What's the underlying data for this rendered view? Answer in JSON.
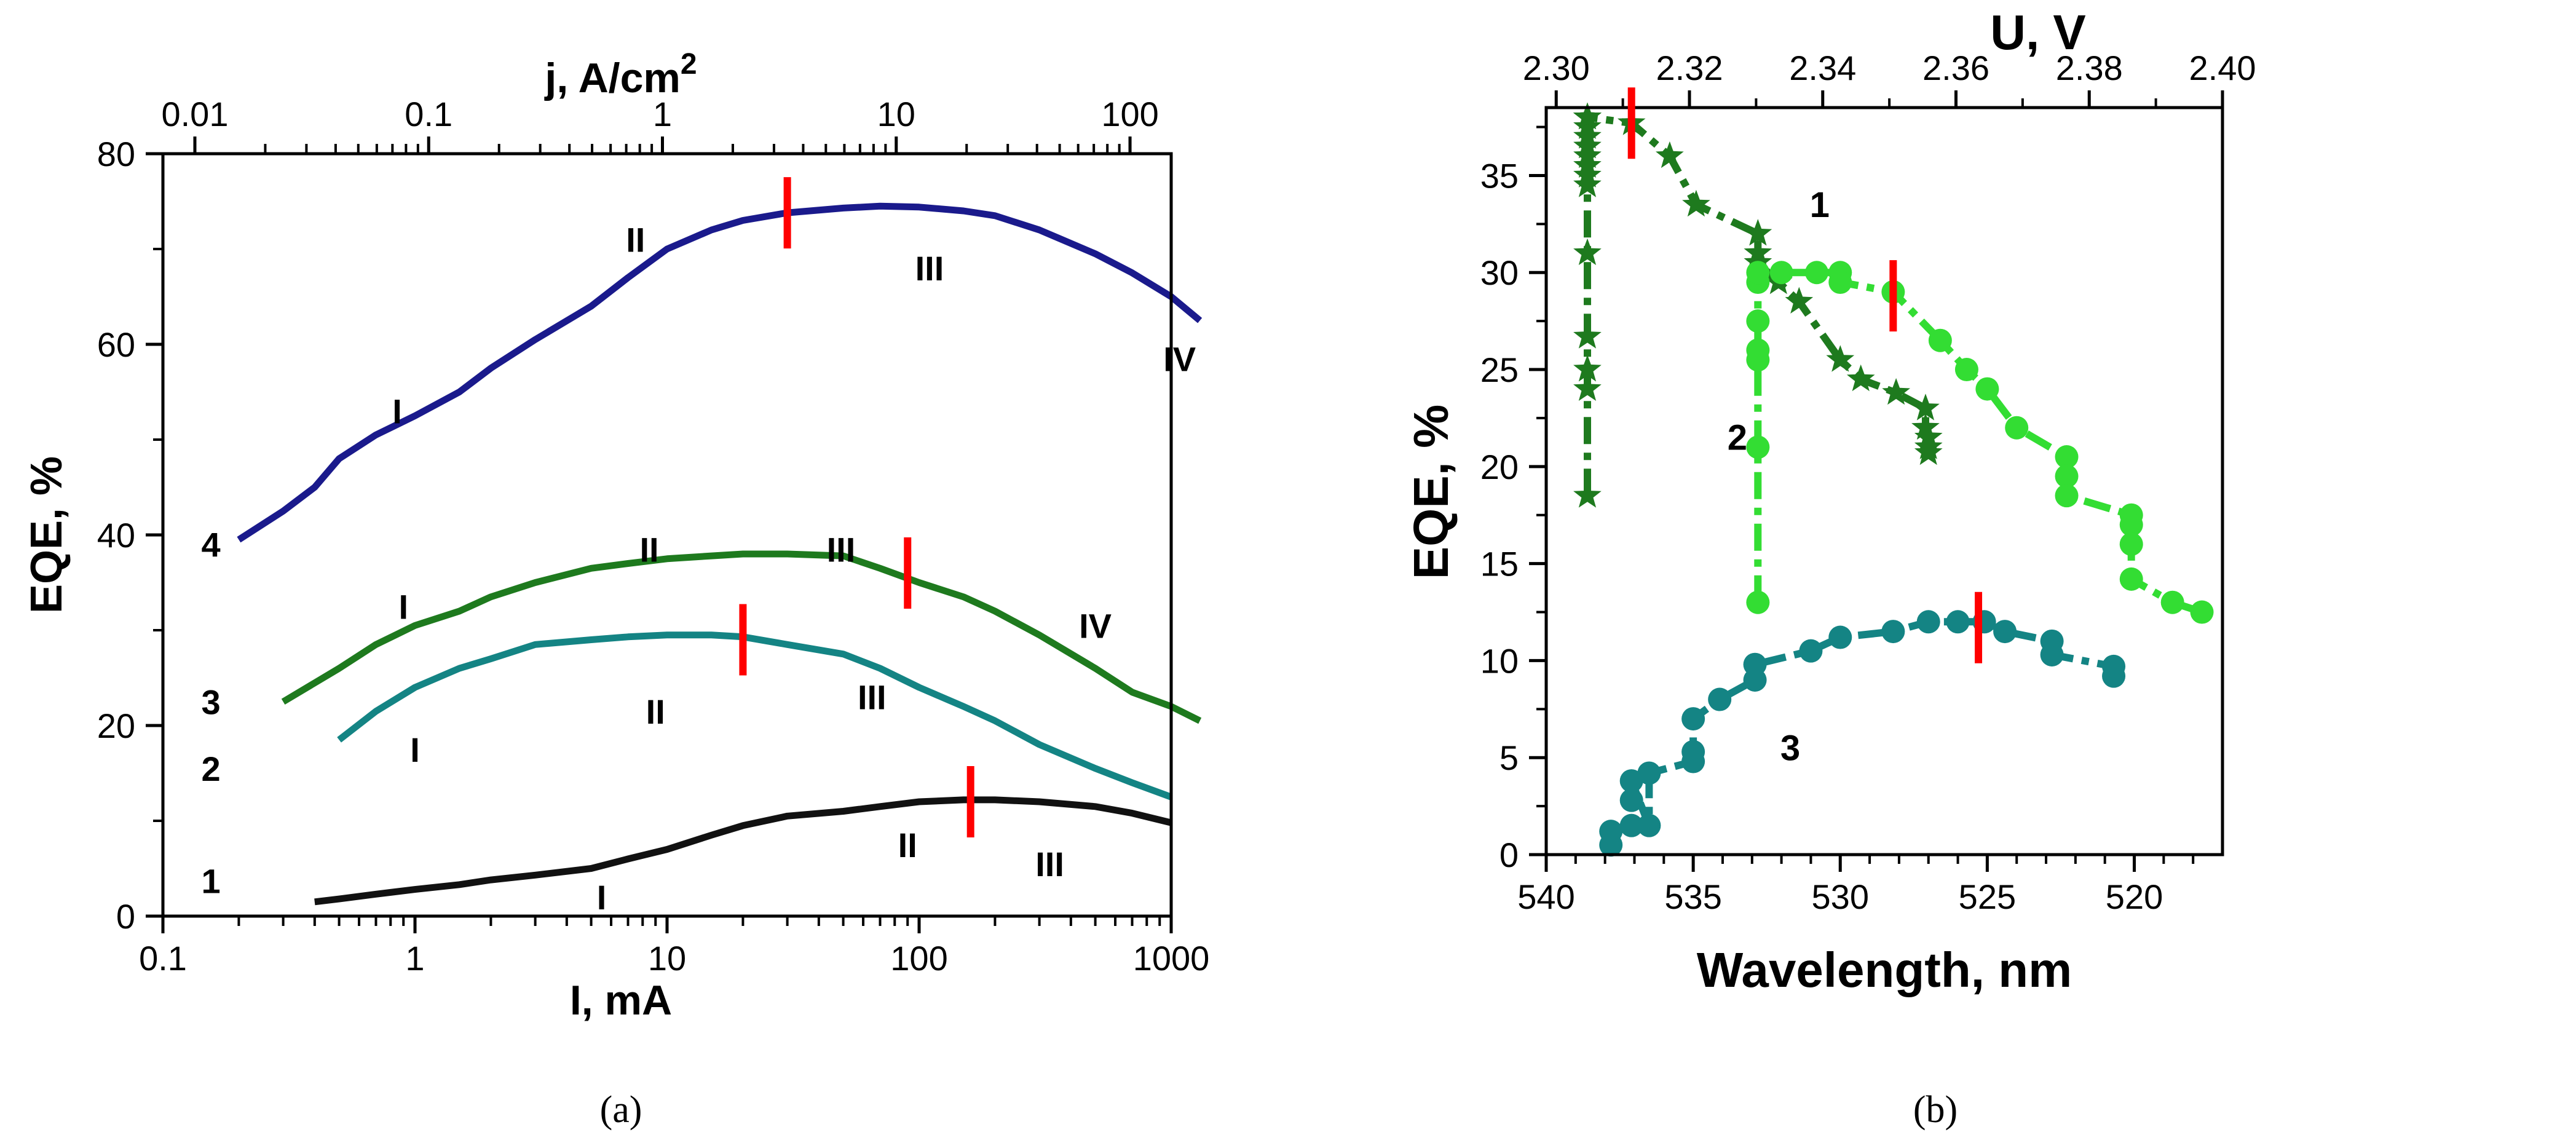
{
  "chart_data": [
    {
      "panel_label": "(a)",
      "type": "line",
      "xscale": "log",
      "xlim": [
        0.1,
        1000
      ],
      "xticks": [
        0.1,
        1,
        10,
        100,
        1000
      ],
      "xtick_labels": [
        "0.1",
        "1",
        "10",
        "100",
        "1000"
      ],
      "xlabel": "I, mA",
      "ylabel": "EQE, %",
      "ylim": [
        0,
        80
      ],
      "yticks": [
        0,
        20,
        40,
        60,
        80
      ],
      "ytick_labels": [
        "0",
        "20",
        "40",
        "60",
        "80"
      ],
      "top_axis": {
        "label_prefix": "j, A/cm",
        "label_sup": "2",
        "ticks": [
          0.01,
          0.1,
          1,
          10,
          100
        ],
        "tick_labels": [
          "0.01",
          "0.1",
          "1",
          "10",
          "100"
        ],
        "limits": [
          0.0073,
          150
        ]
      },
      "series": [
        {
          "name": "4",
          "color": "#1a1a8c",
          "x": [
            0.2,
            0.3,
            0.4,
            0.5,
            0.7,
            1,
            1.5,
            2,
            3,
            5,
            7,
            10,
            15,
            20,
            30,
            50,
            70,
            100,
            150,
            200,
            300,
            500,
            700,
            1000,
            1300
          ],
          "y": [
            39.5,
            42.5,
            45,
            48,
            50.5,
            52.5,
            55,
            57.5,
            60.5,
            64,
            67,
            70,
            72,
            73,
            73.8,
            74.3,
            74.5,
            74.4,
            74,
            73.5,
            72,
            69.5,
            67.5,
            65,
            62.5
          ]
        },
        {
          "name": "3",
          "color": "#1e7a1e",
          "x": [
            0.3,
            0.5,
            0.7,
            1,
            1.5,
            2,
            3,
            5,
            7,
            10,
            15,
            20,
            30,
            50,
            70,
            100,
            150,
            200,
            300,
            500,
            700,
            1000,
            1300
          ],
          "y": [
            22.5,
            26,
            28.5,
            30.5,
            32,
            33.5,
            35,
            36.5,
            37,
            37.5,
            37.8,
            38,
            38,
            37.8,
            36.5,
            35,
            33.5,
            32,
            29.5,
            26,
            23.5,
            22,
            20.5
          ]
        },
        {
          "name": "2",
          "color": "#148484",
          "x": [
            0.5,
            0.7,
            1,
            1.5,
            2,
            3,
            5,
            7,
            10,
            15,
            20,
            30,
            50,
            70,
            100,
            150,
            200,
            300,
            500,
            700,
            1000
          ],
          "y": [
            18.5,
            21.5,
            24,
            26,
            27,
            28.5,
            29,
            29.3,
            29.5,
            29.5,
            29.3,
            28.5,
            27.5,
            26,
            24,
            22,
            20.5,
            18,
            15.5,
            14,
            12.5
          ]
        },
        {
          "name": "1",
          "color": "#111111",
          "x": [
            0.4,
            0.5,
            0.7,
            1,
            1.5,
            2,
            3,
            5,
            7,
            10,
            15,
            20,
            30,
            50,
            70,
            100,
            150,
            200,
            300,
            500,
            700,
            1000
          ],
          "y": [
            1.5,
            1.8,
            2.3,
            2.8,
            3.3,
            3.8,
            4.3,
            5,
            6,
            7,
            8.5,
            9.5,
            10.5,
            11,
            11.5,
            12,
            12.2,
            12.2,
            12,
            11.5,
            10.8,
            9.8
          ]
        }
      ],
      "curve_labels": [
        {
          "text": "4",
          "x": 0.155,
          "y": 39
        },
        {
          "text": "3",
          "x": 0.155,
          "y": 22.5
        },
        {
          "text": "2",
          "x": 0.155,
          "y": 15.5
        },
        {
          "text": "1",
          "x": 0.155,
          "y": 3.7
        }
      ],
      "region_labels": [
        {
          "text": "I",
          "x": 0.85,
          "y": 53
        },
        {
          "text": "II",
          "x": 7.5,
          "y": 71
        },
        {
          "text": "III",
          "x": 110,
          "y": 68
        },
        {
          "text": "IV",
          "x": 1080,
          "y": 58.5
        },
        {
          "text": "I",
          "x": 0.9,
          "y": 32.5
        },
        {
          "text": "II",
          "x": 8.5,
          "y": 38.5
        },
        {
          "text": "III",
          "x": 49,
          "y": 38.5
        },
        {
          "text": "IV",
          "x": 500,
          "y": 30.5
        },
        {
          "text": "I",
          "x": 1,
          "y": 17.5
        },
        {
          "text": "II",
          "x": 9,
          "y": 21.5
        },
        {
          "text": "III",
          "x": 65,
          "y": 23
        },
        {
          "text": "II",
          "x": 90,
          "y": 7.5
        },
        {
          "text": "III",
          "x": 330,
          "y": 5.5
        },
        {
          "text": "I",
          "x": 5.5,
          "y": 2
        }
      ],
      "markers": [
        {
          "x": 30,
          "y": 73.8,
          "color": "#ff0000"
        },
        {
          "x": 90,
          "y": 36,
          "color": "#ff0000"
        },
        {
          "x": 20,
          "y": 29,
          "color": "#ff0000"
        },
        {
          "x": 160,
          "y": 12,
          "color": "#ff0000"
        }
      ]
    },
    {
      "panel_label": "(b)",
      "type": "line",
      "xlabel": "Wavelength, nm",
      "xlim": [
        540,
        517
      ],
      "xticks": [
        540,
        535,
        530,
        525,
        520
      ],
      "xtick_labels": [
        "540",
        "535",
        "530",
        "525",
        "520"
      ],
      "ylabel": "EQE, %",
      "ylim": [
        0,
        38.5
      ],
      "yticks": [
        0,
        5,
        10,
        15,
        20,
        25,
        30,
        35
      ],
      "ytick_labels": [
        "0",
        "5",
        "10",
        "15",
        "20",
        "25",
        "30",
        "35"
      ],
      "top_axis": {
        "label": "U, V",
        "ticks": [
          2.3,
          2.32,
          2.34,
          2.36,
          2.38,
          2.4
        ],
        "tick_labels": [
          "2.30",
          "2.32",
          "2.34",
          "2.36",
          "2.38",
          "2.40"
        ],
        "limits": [
          2.2985,
          2.4
        ]
      },
      "series": [
        {
          "name": "1",
          "color": "#1e7a1e",
          "marker": "star",
          "x": [
            538.6,
            538.6,
            538.6,
            538.6,
            538.6,
            538.6,
            538.6,
            538.6,
            538.6,
            538.6,
            538.6,
            538.6,
            538.6,
            538.6,
            538.6,
            538.6,
            537.1,
            535.8,
            534.9,
            532.8,
            532.8,
            532.8,
            532.1,
            531.4,
            530.0,
            529.3,
            528.1,
            527.1,
            527.1,
            527.0,
            527.0,
            527.0
          ],
          "y": [
            18.5,
            24,
            25,
            26.7,
            31,
            34.5,
            35,
            35.5,
            36,
            36.5,
            37,
            37.5,
            38,
            38,
            38,
            38,
            37.7,
            36,
            33.5,
            32,
            31,
            30.5,
            29.5,
            28.5,
            25.5,
            24.5,
            23.8,
            23,
            22,
            21.5,
            21,
            20.7
          ]
        },
        {
          "name": "2",
          "color": "#33dd33",
          "marker": "circle",
          "x": [
            532.8,
            532.8,
            532.8,
            532.8,
            532.8,
            532.8,
            532.8,
            532.0,
            530.8,
            530.0,
            530.0,
            528.2,
            526.6,
            525.7,
            525.0,
            524.0,
            522.3,
            522.3,
            522.3,
            520.1,
            520.1,
            520.1,
            520.1,
            518.7,
            517.7
          ],
          "y": [
            13,
            21,
            25.5,
            26,
            27.5,
            29.5,
            30,
            30,
            30,
            30,
            29.5,
            29,
            26.5,
            25,
            24,
            22,
            20.5,
            19.5,
            18.5,
            17.5,
            17,
            16,
            14.2,
            13,
            12.5
          ]
        },
        {
          "name": "3",
          "color": "#148484",
          "marker": "circle",
          "x": [
            537.8,
            537.8,
            537.1,
            537.1,
            537.1,
            536.5,
            536.5,
            535.0,
            535.0,
            535.0,
            534.1,
            532.9,
            532.9,
            531.0,
            530.0,
            528.2,
            527.0,
            526.0,
            525.1,
            524.4,
            522.8,
            522.8,
            520.7,
            520.7
          ],
          "y": [
            0.5,
            1.2,
            1.5,
            2.8,
            3.8,
            1.5,
            4.2,
            4.8,
            5.3,
            7,
            8,
            9,
            9.8,
            10.5,
            11.2,
            11.5,
            12,
            12,
            12,
            11.5,
            11,
            10.3,
            9.7,
            9.2
          ]
        }
      ],
      "curve_labels": [
        {
          "text": "1",
          "x": 530.7,
          "y": 33.5
        },
        {
          "text": "2",
          "x": 533.5,
          "y": 21.5
        },
        {
          "text": "3",
          "x": 531.7,
          "y": 5.5
        }
      ],
      "markers": [
        {
          "x": 537.1,
          "y": 37.7,
          "color": "#ff0000"
        },
        {
          "x": 528.2,
          "y": 28.8,
          "color": "#ff0000"
        },
        {
          "x": 525.3,
          "y": 11.7,
          "color": "#ff0000"
        }
      ]
    }
  ]
}
